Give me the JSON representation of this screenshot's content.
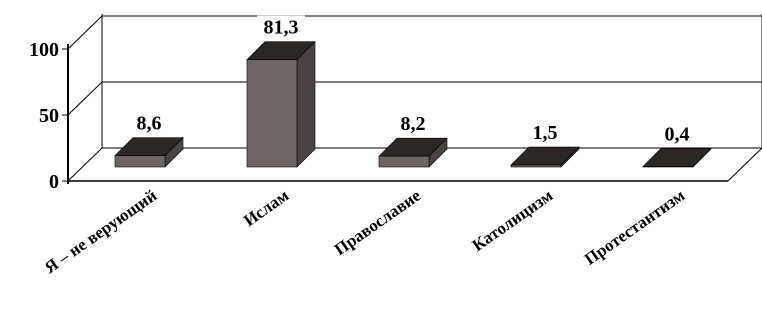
{
  "chart_data": {
    "type": "bar",
    "title": "",
    "xlabel": "",
    "ylabel": "",
    "categories": [
      "Я – не верующий",
      "Ислам",
      "Православие",
      "Католицизм",
      "Протестантизм"
    ],
    "values": [
      8.6,
      81.3,
      8.2,
      1.5,
      0.4
    ],
    "value_labels": [
      "8,6",
      "81,3",
      "8,2",
      "1,5",
      "0,4"
    ],
    "ylim": [
      0,
      100
    ],
    "y_ticks": [
      0,
      50,
      100
    ],
    "y_tick_labels": [
      "0",
      "50",
      "100"
    ],
    "grid": true,
    "legend": "none",
    "style": "3d-column",
    "colors": {
      "bar_front": "#6e6665",
      "bar_top": "#2c2625",
      "bar_side": "#4a4342",
      "axis": "#000000",
      "grid": "#000000"
    }
  }
}
